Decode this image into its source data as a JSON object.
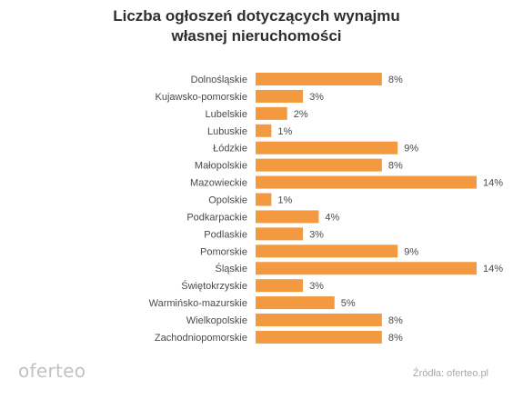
{
  "title_lines": [
    "Liczba ogłoszeń dotyczących wynajmu",
    "własnej nieruchomości"
  ],
  "logo_text": "oferteo",
  "source_text": "Źródła: oferteo.pl",
  "colors": {
    "bar": "#f39a40",
    "text": "#4a4a4a",
    "title": "#2e2e2e",
    "muted": "#c2c2c2"
  },
  "chart_data": {
    "type": "bar",
    "orientation": "horizontal",
    "title": "Liczba ogłoszeń dotyczących wynajmu własnej nieruchomości",
    "xlabel": "",
    "ylabel": "",
    "unit": "%",
    "grid": false,
    "legend": "none",
    "xlim": [
      0,
      14
    ],
    "categories": [
      "Dolnośląskie",
      "Kujawsko-pomorskie",
      "Lubelskie",
      "Lubuskie",
      "Łódzkie",
      "Małopolskie",
      "Mazowieckie",
      "Opolskie",
      "Podkarpackie",
      "Podlaskie",
      "Pomorskie",
      "Śląskie",
      "Świętokrzyskie",
      "Warmińsko-mazurskie",
      "Wielkopolskie",
      "Zachodniopomorskie"
    ],
    "values": [
      8,
      3,
      2,
      1,
      9,
      8,
      14,
      1,
      4,
      3,
      9,
      14,
      3,
      5,
      8,
      8
    ],
    "labels": [
      "8%",
      "3%",
      "2%",
      "1%",
      "9%",
      "8%",
      "14%",
      "1%",
      "4%",
      "3%",
      "9%",
      "14%",
      "3%",
      "5%",
      "8%",
      "8%"
    ]
  }
}
